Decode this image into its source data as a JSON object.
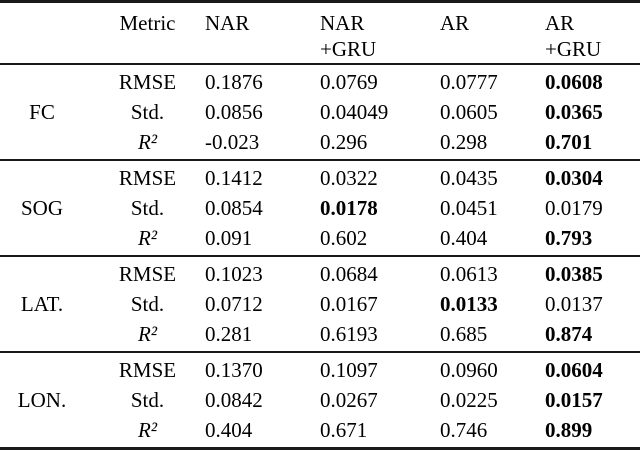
{
  "table": {
    "header": {
      "metric": "Metric",
      "columns": [
        {
          "line1": "NAR",
          "line2": ""
        },
        {
          "line1": "NAR",
          "line2": "+GRU"
        },
        {
          "line1": "AR",
          "line2": ""
        },
        {
          "line1": "AR",
          "line2": "+GRU"
        }
      ]
    },
    "groups": [
      {
        "label": "FC",
        "rows": [
          {
            "metric": "RMSE",
            "values": [
              "0.1876",
              "0.0769",
              "0.0777",
              "0.0608"
            ],
            "bold": [
              false,
              false,
              false,
              true
            ]
          },
          {
            "metric": "Std.",
            "values": [
              "0.0856",
              "0.04049",
              "0.0605",
              "0.0365"
            ],
            "bold": [
              false,
              false,
              false,
              true
            ]
          },
          {
            "metric": "R²",
            "values": [
              "-0.023",
              "0.296",
              "0.298",
              "0.701"
            ],
            "bold": [
              false,
              false,
              false,
              true
            ]
          }
        ]
      },
      {
        "label": "SOG",
        "rows": [
          {
            "metric": "RMSE",
            "values": [
              "0.1412",
              "0.0322",
              "0.0435",
              "0.0304"
            ],
            "bold": [
              false,
              false,
              false,
              true
            ]
          },
          {
            "metric": "Std.",
            "values": [
              "0.0854",
              "0.0178",
              "0.0451",
              "0.0179"
            ],
            "bold": [
              false,
              true,
              false,
              false
            ]
          },
          {
            "metric": "R²",
            "values": [
              "0.091",
              "0.602",
              "0.404",
              "0.793"
            ],
            "bold": [
              false,
              false,
              false,
              true
            ]
          }
        ]
      },
      {
        "label": "LAT.",
        "rows": [
          {
            "metric": "RMSE",
            "values": [
              "0.1023",
              "0.0684",
              "0.0613",
              "0.0385"
            ],
            "bold": [
              false,
              false,
              false,
              true
            ]
          },
          {
            "metric": "Std.",
            "values": [
              "0.0712",
              "0.0167",
              "0.0133",
              "0.0137"
            ],
            "bold": [
              false,
              false,
              true,
              false
            ]
          },
          {
            "metric": "R²",
            "values": [
              "0.281",
              "0.6193",
              "0.685",
              "0.874"
            ],
            "bold": [
              false,
              false,
              false,
              true
            ]
          }
        ]
      },
      {
        "label": "LON.",
        "rows": [
          {
            "metric": "RMSE",
            "values": [
              "0.1370",
              "0.1097",
              "0.0960",
              "0.0604"
            ],
            "bold": [
              false,
              false,
              false,
              true
            ]
          },
          {
            "metric": "Std.",
            "values": [
              "0.0842",
              "0.0267",
              "0.0225",
              "0.0157"
            ],
            "bold": [
              false,
              false,
              false,
              true
            ]
          },
          {
            "metric": "R²",
            "values": [
              "0.404",
              "0.671",
              "0.746",
              "0.899"
            ],
            "bold": [
              false,
              false,
              false,
              true
            ]
          }
        ]
      }
    ]
  }
}
